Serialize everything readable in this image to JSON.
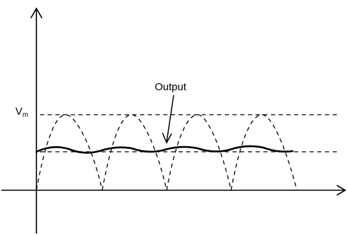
{
  "labels": {
    "peak_voltage": "V",
    "peak_voltage_subscript": "m",
    "output": "Output"
  },
  "waveform": {
    "dashed_humps": 4,
    "output_ripples": 4
  },
  "colors": {
    "stroke": "#000000",
    "background": "#ffffff"
  }
}
